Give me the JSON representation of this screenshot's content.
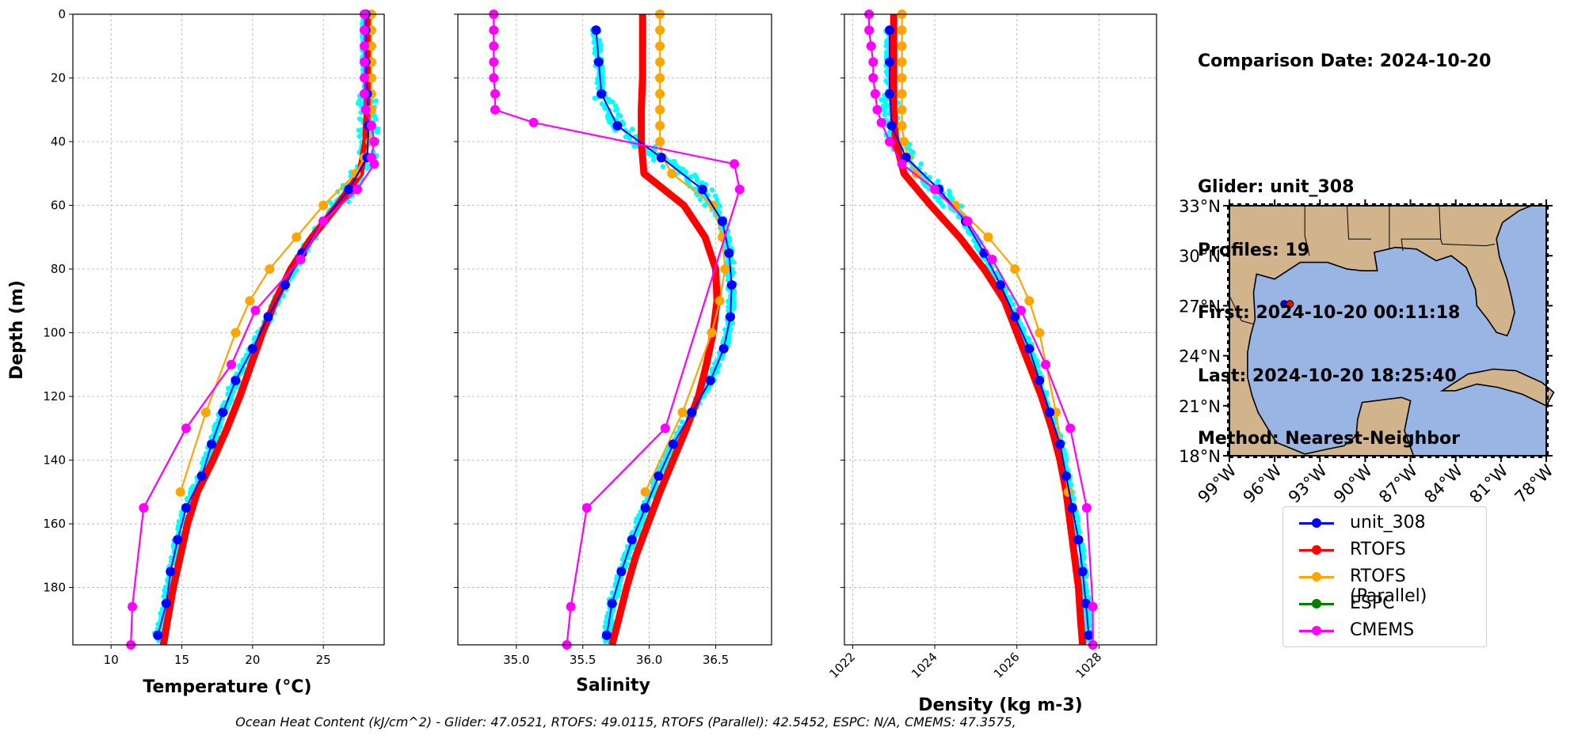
{
  "chart_data": [
    {
      "type": "line",
      "xlabel": "Temperature (°C)",
      "ylabel": "Depth (m)",
      "xlim": [
        7.3,
        29.3
      ],
      "ylim": [
        198,
        0
      ],
      "xticks": [
        10,
        15,
        20,
        25
      ],
      "yticks": [
        0,
        20,
        40,
        60,
        80,
        100,
        120,
        140,
        160,
        180
      ],
      "grid": true,
      "series": [
        {
          "name": "RTOFS",
          "color": "#ff0000",
          "depth": [
            0,
            10,
            20,
            30,
            40,
            50,
            60,
            70,
            80,
            90,
            100,
            110,
            120,
            130,
            140,
            150,
            160,
            170,
            180,
            190,
            198
          ],
          "values": [
            28.1,
            28.1,
            28.1,
            28.1,
            28.0,
            27.6,
            26.0,
            24.2,
            22.7,
            21.6,
            20.7,
            19.9,
            19.1,
            18.2,
            17.2,
            16.1,
            15.4,
            14.9,
            14.4,
            14.0,
            13.7
          ]
        },
        {
          "name": "RTOFS (Parallel)",
          "color": "#ffa500",
          "depth": [
            0,
            5,
            10,
            15,
            20,
            25,
            30,
            35,
            40,
            45,
            50,
            60,
            70,
            80,
            90,
            100,
            125,
            150
          ],
          "values": [
            28.4,
            28.4,
            28.4,
            28.4,
            28.4,
            28.4,
            28.4,
            28.3,
            28.3,
            27.9,
            27.3,
            25.0,
            23.1,
            21.2,
            19.8,
            18.8,
            16.7,
            14.9
          ]
        },
        {
          "name": "unit_308",
          "color": "#0000ff",
          "depth": [
            0,
            5,
            15,
            25,
            35,
            45,
            55,
            65,
            75,
            85,
            95,
            105,
            115,
            125,
            135,
            145,
            155,
            165,
            175,
            185,
            195
          ],
          "values": [
            28.0,
            28.0,
            28.0,
            28.1,
            28.2,
            28.1,
            26.8,
            25.0,
            23.5,
            22.3,
            21.1,
            20.0,
            18.8,
            17.9,
            17.1,
            16.4,
            15.3,
            14.7,
            14.2,
            13.9,
            13.3
          ]
        },
        {
          "name": "CMEMS",
          "color": "#ff00ff",
          "depth": [
            0,
            5,
            10,
            15,
            20,
            25,
            30,
            35,
            40,
            45,
            47,
            55,
            65,
            77,
            93,
            110,
            130,
            155,
            186,
            198
          ],
          "values": [
            27.9,
            27.9,
            27.9,
            27.9,
            27.9,
            27.9,
            28.0,
            28.4,
            28.6,
            28.4,
            28.6,
            27.4,
            25.0,
            23.4,
            20.2,
            18.5,
            15.3,
            12.3,
            11.5,
            11.4
          ]
        }
      ]
    },
    {
      "type": "line",
      "xlabel": "Salinity",
      "xlim": [
        34.56,
        36.92
      ],
      "ylim": [
        198,
        0
      ],
      "xticks": [
        35.0,
        35.5,
        36.0,
        36.5
      ],
      "grid": true,
      "series": [
        {
          "name": "RTOFS",
          "color": "#ff0000",
          "depth": [
            0,
            10,
            20,
            30,
            40,
            50,
            60,
            70,
            80,
            90,
            100,
            110,
            120,
            130,
            140,
            150,
            160,
            170,
            180,
            190,
            198
          ],
          "values": [
            35.95,
            35.95,
            35.95,
            35.94,
            35.94,
            35.96,
            36.26,
            36.42,
            36.5,
            36.51,
            36.48,
            36.43,
            36.37,
            36.28,
            36.18,
            36.08,
            35.99,
            35.9,
            35.83,
            35.77,
            35.72
          ]
        },
        {
          "name": "RTOFS (Parallel)",
          "color": "#ffa500",
          "depth": [
            0,
            5,
            10,
            15,
            20,
            25,
            30,
            35,
            40,
            45,
            50,
            60,
            70,
            80,
            90,
            100,
            125,
            150
          ],
          "values": [
            36.08,
            36.08,
            36.08,
            36.08,
            36.08,
            36.08,
            36.08,
            36.08,
            36.08,
            36.1,
            36.17,
            36.48,
            36.55,
            36.57,
            36.53,
            36.47,
            36.25,
            35.97
          ]
        },
        {
          "name": "unit_308",
          "color": "#0000ff",
          "depth": [
            5,
            15,
            25,
            35,
            45,
            55,
            65,
            75,
            85,
            95,
            105,
            115,
            125,
            135,
            145,
            155,
            165,
            175,
            185,
            195
          ],
          "values": [
            35.6,
            35.62,
            35.64,
            35.76,
            36.09,
            36.4,
            36.55,
            36.6,
            36.62,
            36.61,
            36.56,
            36.46,
            36.32,
            36.18,
            36.07,
            35.97,
            35.87,
            35.79,
            35.72,
            35.68
          ]
        },
        {
          "name": "CMEMS",
          "color": "#ff00ff",
          "depth": [
            0,
            5,
            10,
            15,
            20,
            25,
            30,
            34,
            47,
            55,
            130,
            155,
            186,
            198
          ],
          "values": [
            34.83,
            34.83,
            34.83,
            34.83,
            34.83,
            34.84,
            34.84,
            35.13,
            36.64,
            36.68,
            36.12,
            35.53,
            35.41,
            35.38
          ]
        }
      ]
    },
    {
      "type": "line",
      "xlabel": "Density (kg m-3)",
      "xlim": [
        1021.8,
        1029.4
      ],
      "ylim": [
        198,
        0
      ],
      "xticks": [
        1022,
        1024,
        1026,
        1028
      ],
      "grid": true,
      "series": [
        {
          "name": "RTOFS",
          "color": "#ff0000",
          "depth": [
            0,
            10,
            20,
            30,
            40,
            50,
            60,
            70,
            80,
            90,
            100,
            110,
            120,
            130,
            140,
            150,
            160,
            170,
            180,
            190,
            198
          ],
          "values": [
            1023.0,
            1023.0,
            1023.0,
            1023.0,
            1023.05,
            1023.25,
            1023.9,
            1024.6,
            1025.2,
            1025.7,
            1026.0,
            1026.3,
            1026.6,
            1026.85,
            1027.05,
            1027.2,
            1027.3,
            1027.4,
            1027.5,
            1027.55,
            1027.6
          ]
        },
        {
          "name": "RTOFS (Parallel)",
          "color": "#ffa500",
          "depth": [
            0,
            5,
            10,
            15,
            20,
            25,
            30,
            35,
            40,
            45,
            50,
            60,
            70,
            80,
            90,
            100,
            125,
            150
          ],
          "values": [
            1023.2,
            1023.2,
            1023.2,
            1023.2,
            1023.2,
            1023.2,
            1023.2,
            1023.2,
            1023.25,
            1023.35,
            1023.55,
            1024.5,
            1025.3,
            1025.95,
            1026.3,
            1026.55,
            1026.95,
            1027.25
          ]
        },
        {
          "name": "unit_308",
          "color": "#0000ff",
          "depth": [
            5,
            15,
            25,
            35,
            45,
            55,
            65,
            75,
            85,
            95,
            105,
            115,
            125,
            135,
            145,
            155,
            165,
            175,
            185,
            195
          ],
          "values": [
            1022.9,
            1022.9,
            1022.9,
            1022.95,
            1023.3,
            1024.1,
            1024.75,
            1025.2,
            1025.6,
            1025.95,
            1026.3,
            1026.55,
            1026.8,
            1027.05,
            1027.2,
            1027.35,
            1027.5,
            1027.6,
            1027.68,
            1027.75
          ]
        },
        {
          "name": "CMEMS",
          "color": "#ff00ff",
          "depth": [
            0,
            5,
            10,
            15,
            20,
            25,
            30,
            34,
            40,
            47,
            55,
            65,
            77,
            93,
            110,
            130,
            155,
            186,
            198
          ],
          "values": [
            1022.4,
            1022.4,
            1022.45,
            1022.5,
            1022.5,
            1022.55,
            1022.6,
            1022.7,
            1022.9,
            1023.2,
            1024.0,
            1024.8,
            1025.4,
            1026.1,
            1026.7,
            1027.3,
            1027.7,
            1027.85,
            1027.85
          ]
        }
      ]
    }
  ],
  "glider_swath_color": "#00ffff",
  "info": {
    "comparison_date": "Comparison Date: 2024-10-20",
    "glider": "Glider: unit_308",
    "profiles": "Profiles: 19",
    "first": "First: 2024-10-20 00:11:18",
    "last": "Last: 2024-10-20 18:25:40",
    "method": "Method: Nearest-Neighbor"
  },
  "map": {
    "lat_labels": [
      "33°N",
      "30°N",
      "27°N",
      "24°N",
      "21°N",
      "18°N"
    ],
    "lon_labels": [
      "99°W",
      "96°W",
      "93°W",
      "90°W",
      "87°W",
      "84°W",
      "81°W",
      "78°W"
    ],
    "lat_range": [
      18,
      33
    ],
    "lon_range": [
      -99,
      -78
    ],
    "land_color": "#d2b48c",
    "ocean_color": "#99b5e3",
    "glider_position_lat": 27.1,
    "glider_position_lon": -95.1
  },
  "legend": [
    {
      "label": "unit_308",
      "color": "#0000ff"
    },
    {
      "label": "RTOFS",
      "color": "#ff0000"
    },
    {
      "label": "RTOFS (Parallel)",
      "color": "#ffa500"
    },
    {
      "label": "ESPC",
      "color": "#008000"
    },
    {
      "label": "CMEMS",
      "color": "#ff00ff"
    }
  ],
  "footer": "Ocean Heat Content (kJ/cm^2) - Glider: 47.0521,  RTOFS: 49.0115,  RTOFS (Parallel): 42.5452,  ESPC: N/A,  CMEMS: 47.3575,"
}
